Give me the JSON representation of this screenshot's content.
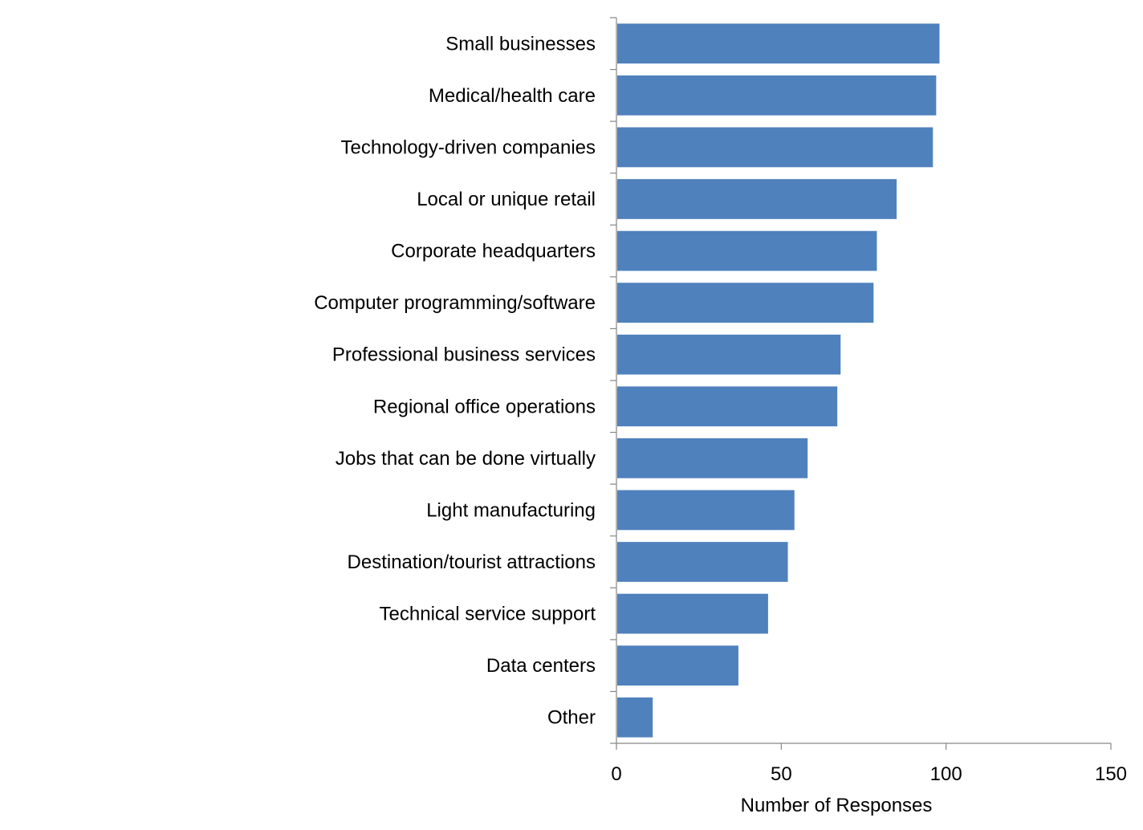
{
  "chart_data": {
    "type": "bar",
    "orientation": "horizontal",
    "categories": [
      "Small businesses",
      "Medical/health care",
      "Technology-driven companies",
      "Local or unique retail",
      "Corporate headquarters",
      "Computer programming/software",
      "Professional business services",
      "Regional office operations",
      "Jobs that can be done virtually",
      "Light manufacturing",
      "Destination/tourist attractions",
      "Technical service support",
      "Data centers",
      "Other"
    ],
    "values": [
      98,
      97,
      96,
      85,
      79,
      78,
      68,
      67,
      58,
      54,
      52,
      46,
      37,
      11
    ],
    "title": "",
    "xlabel": "Number of Responses",
    "ylabel": "",
    "xlim": [
      0,
      150
    ],
    "x_ticks": [
      0,
      50,
      100,
      150
    ],
    "grid": false,
    "legend": "none",
    "bar_color": "#4f81bd"
  }
}
